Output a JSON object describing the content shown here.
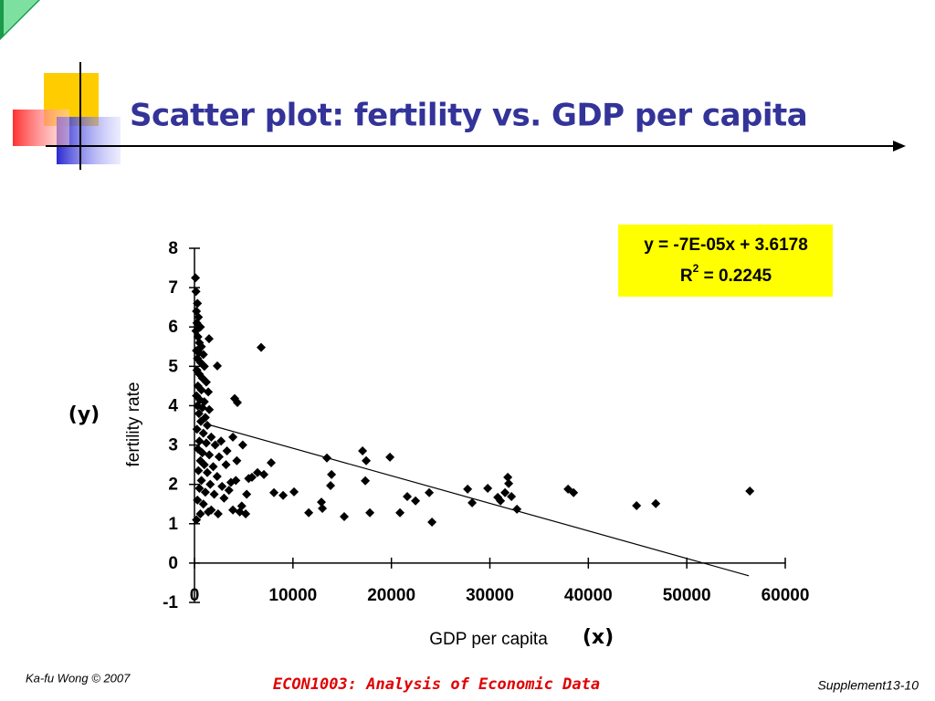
{
  "slide": {
    "title": "Scatter plot: fertility vs. GDP per capita",
    "y_hint": "(y)",
    "x_hint": "(x)",
    "footer_left": "Ka-fu Wong © 2007",
    "footer_center": "ECON1003: Analysis of Economic Data",
    "footer_right": "Supplement13-10"
  },
  "chart_data": {
    "type": "scatter",
    "xlabel": "GDP per capita",
    "ylabel": "fertility rate",
    "equation": "y = -7E-05x + 3.6178",
    "r2": {
      "base": "R",
      "sup": "2",
      "rest": " = 0.2245"
    },
    "xlim": [
      0,
      60000
    ],
    "xticks": [
      0,
      10000,
      20000,
      30000,
      40000,
      50000,
      60000
    ],
    "ylim": [
      -1,
      8
    ],
    "yticks": [
      -1,
      0,
      1,
      2,
      3,
      4,
      5,
      6,
      7,
      8
    ],
    "color": "#000000",
    "x": [
      6770,
      4360,
      4080,
      2320,
      1480,
      7790,
      7050,
      6400,
      5840,
      8070,
      9000,
      10110,
      11600,
      12890,
      12990,
      15210,
      13450,
      13920,
      13820,
      17070,
      17440,
      17350,
      17810,
      19850,
      20870,
      21610,
      22450,
      23840,
      24120,
      27740,
      28200,
      29780,
      30800,
      31080,
      31540,
      31820,
      31910,
      32190,
      32750,
      37940,
      38500,
      44900,
      46850,
      56400,
      100,
      150,
      300,
      200,
      400,
      250,
      600,
      150,
      350,
      500,
      700,
      200,
      450,
      900,
      300,
      600,
      1000,
      250,
      500,
      800,
      1200,
      350,
      700,
      1400,
      200,
      550,
      1000,
      300,
      800,
      1500,
      450,
      1100,
      650,
      1300,
      250,
      900,
      1700,
      500,
      1200,
      2100,
      350,
      800,
      1500,
      2500,
      600,
      1000,
      1900,
      3200,
      400,
      1300,
      2300,
      3700,
      700,
      1600,
      2800,
      4200,
      500,
      1100,
      2000,
      3500,
      300,
      900,
      1700,
      2400,
      3900,
      600,
      1400,
      200,
      4600,
      5200,
      4800,
      3300,
      3900,
      4900,
      2700,
      3000,
      4300,
      5500,
      5300
    ],
    "y": [
      5.48,
      4.08,
      4.18,
      5.01,
      5.7,
      2.55,
      2.25,
      2.3,
      2.18,
      1.79,
      1.72,
      1.81,
      1.28,
      1.55,
      1.39,
      1.18,
      2.67,
      2.25,
      1.97,
      2.85,
      2.6,
      2.09,
      1.28,
      2.69,
      1.28,
      1.69,
      1.58,
      1.79,
      1.04,
      1.88,
      1.53,
      1.9,
      1.67,
      1.58,
      1.79,
      2.18,
      2.02,
      1.69,
      1.37,
      1.88,
      1.79,
      1.46,
      1.51,
      1.83,
      7.25,
      6.9,
      6.6,
      6.4,
      6.25,
      6.1,
      6.0,
      5.9,
      5.75,
      5.6,
      5.5,
      5.4,
      5.35,
      5.3,
      5.2,
      5.1,
      5.0,
      4.9,
      4.8,
      4.7,
      4.6,
      4.5,
      4.4,
      4.35,
      4.25,
      4.15,
      4.1,
      4.0,
      3.95,
      3.9,
      3.8,
      3.7,
      3.6,
      3.5,
      3.4,
      3.3,
      3.2,
      3.1,
      3.05,
      3.0,
      2.9,
      2.8,
      2.75,
      2.7,
      2.6,
      2.5,
      2.45,
      2.5,
      2.35,
      2.3,
      2.2,
      2.05,
      2.1,
      2.0,
      1.95,
      2.1,
      1.9,
      1.8,
      1.75,
      1.85,
      1.6,
      1.5,
      1.35,
      1.25,
      1.35,
      1.25,
      1.3,
      1.1,
      1.3,
      1.25,
      1.45,
      2.85,
      3.2,
      3.0,
      3.1,
      1.65,
      2.6,
      2.15,
      1.75
    ],
    "trendline": {
      "x": [
        1600,
        56300
      ],
      "y": [
        3.5058,
        -0.3232
      ]
    }
  }
}
